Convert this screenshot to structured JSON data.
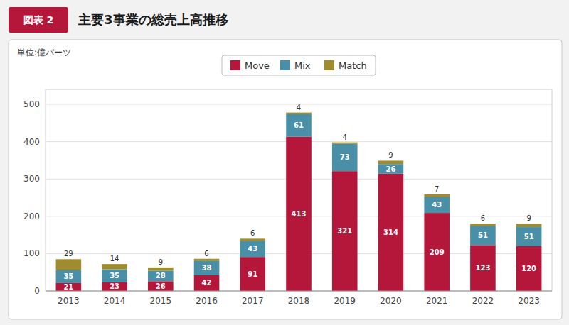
{
  "chart_data": {
    "type": "bar",
    "title": "主要3事業の総売上高推移",
    "annotations": [
      "図表 2"
    ],
    "ylabel": "単位:億パーツ",
    "categories": [
      "2013",
      "2014",
      "2015",
      "2016",
      "2017",
      "2018",
      "2019",
      "2020",
      "2021",
      "2022",
      "2023"
    ],
    "series": [
      {
        "name": "Move",
        "color": "#b5173a",
        "values": [
          21,
          23,
          26,
          42,
          91,
          413,
          321,
          314,
          209,
          123,
          120
        ]
      },
      {
        "name": "Mix",
        "color": "#4a8fa8",
        "values": [
          35,
          35,
          28,
          38,
          43,
          61,
          73,
          26,
          43,
          51,
          51
        ]
      },
      {
        "name": "Match",
        "color": "#9e8c2e",
        "values": [
          29,
          14,
          9,
          6,
          6,
          4,
          4,
          9,
          7,
          6,
          9
        ]
      }
    ],
    "stacked": true,
    "data_labels": true,
    "ylim": [
      0,
      540
    ],
    "yticks": [
      0,
      100,
      200,
      300,
      400,
      500
    ],
    "grid": true,
    "legend": "top"
  }
}
